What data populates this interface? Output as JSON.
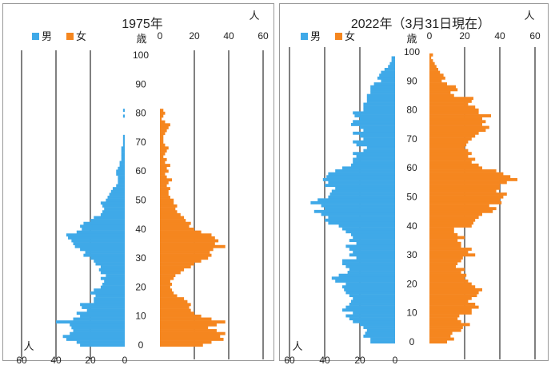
{
  "colors": {
    "male": "#3fa9e8",
    "female": "#f5861f",
    "gridline": "#000000"
  },
  "chart_data": [
    {
      "type": "bar",
      "orientation": "population-pyramid",
      "title": "1975年",
      "legend": [
        "男",
        "女"
      ],
      "unit_label": "人",
      "age_axis_label": "歳",
      "age_ticks": [
        "0",
        "10",
        "20",
        "30",
        "40",
        "50",
        "60",
        "70",
        "80",
        "90",
        "100"
      ],
      "x_ticks_male": [
        "60",
        "40",
        "20",
        "0"
      ],
      "x_ticks_female": [
        "0",
        "20",
        "40",
        "60"
      ],
      "xlim": [
        0,
        60
      ],
      "age_range": [
        0,
        100
      ],
      "series": [
        {
          "name": "男",
          "values": [
            26,
            28,
            34,
            36,
            32,
            30,
            31,
            32,
            40,
            30,
            26,
            28,
            22,
            25,
            26,
            18,
            18,
            17,
            20,
            18,
            14,
            13,
            12,
            14,
            11,
            14,
            15,
            14,
            17,
            18,
            20,
            24,
            23,
            26,
            29,
            30,
            31,
            33,
            34,
            28,
            25,
            26,
            24,
            20,
            18,
            14,
            13,
            12,
            13,
            14,
            11,
            10,
            9,
            8,
            7,
            5,
            4,
            4,
            4,
            5,
            5,
            4,
            3,
            3,
            2,
            2,
            2,
            2,
            2,
            1,
            1,
            1,
            1,
            0,
            0,
            0,
            0,
            0,
            0,
            1,
            0,
            1,
            0,
            0,
            0,
            0,
            0,
            0,
            0,
            0,
            0,
            0,
            0,
            0,
            0,
            0,
            0,
            0,
            0,
            0,
            0
          ]
        },
        {
          "name": "女",
          "values": [
            25,
            30,
            37,
            35,
            38,
            33,
            28,
            33,
            38,
            30,
            24,
            20,
            18,
            17,
            18,
            16,
            14,
            10,
            8,
            7,
            6,
            7,
            6,
            8,
            9,
            12,
            14,
            18,
            20,
            24,
            28,
            30,
            29,
            31,
            38,
            32,
            34,
            32,
            30,
            24,
            20,
            17,
            18,
            15,
            14,
            12,
            10,
            9,
            10,
            8,
            8,
            6,
            5,
            5,
            6,
            4,
            5,
            7,
            4,
            3,
            5,
            4,
            6,
            3,
            4,
            2,
            3,
            4,
            5,
            3,
            2,
            2,
            2,
            3,
            4,
            5,
            6,
            3,
            1,
            2,
            3,
            2,
            0,
            0,
            0,
            0,
            0,
            0,
            0,
            0,
            0,
            0,
            0,
            0,
            0,
            0,
            0,
            0,
            0,
            0,
            0
          ]
        }
      ]
    },
    {
      "type": "bar",
      "orientation": "population-pyramid",
      "title": "2022年（3月31日現在）",
      "legend": [
        "男",
        "女"
      ],
      "unit_label": "人",
      "age_axis_label": "歳",
      "age_ticks": [
        "0",
        "10",
        "20",
        "30",
        "40",
        "50",
        "60",
        "70",
        "80",
        "90",
        "100"
      ],
      "x_ticks_male": [
        "60",
        "40",
        "20",
        "0"
      ],
      "x_ticks_female": [
        "0",
        "20",
        "40",
        "60"
      ],
      "xlim": [
        0,
        60
      ],
      "age_range": [
        0,
        100
      ],
      "series": [
        {
          "name": "男",
          "values": [
            14,
            14,
            18,
            17,
            16,
            18,
            20,
            24,
            26,
            28,
            24,
            30,
            28,
            26,
            25,
            24,
            26,
            28,
            29,
            30,
            28,
            34,
            36,
            32,
            27,
            26,
            28,
            30,
            30,
            22,
            26,
            24,
            26,
            28,
            22,
            26,
            24,
            25,
            28,
            30,
            32,
            38,
            40,
            38,
            42,
            46,
            40,
            42,
            48,
            44,
            38,
            37,
            36,
            34,
            40,
            38,
            41,
            39,
            38,
            34,
            30,
            25,
            24,
            24,
            22,
            24,
            18,
            16,
            22,
            24,
            18,
            20,
            24,
            18,
            20,
            25,
            24,
            20,
            23,
            24,
            18,
            18,
            18,
            16,
            16,
            16,
            14,
            14,
            14,
            12,
            8,
            10,
            9,
            8,
            6,
            4,
            3,
            2,
            2,
            0,
            0
          ]
        },
        {
          "name": "女",
          "values": [
            10,
            14,
            12,
            13,
            18,
            19,
            23,
            18,
            16,
            17,
            24,
            24,
            28,
            26,
            22,
            24,
            27,
            28,
            30,
            26,
            24,
            22,
            20,
            21,
            18,
            20,
            15,
            16,
            18,
            19,
            26,
            22,
            24,
            18,
            18,
            16,
            20,
            16,
            14,
            14,
            24,
            25,
            26,
            28,
            30,
            36,
            38,
            34,
            41,
            40,
            42,
            44,
            38,
            40,
            40,
            44,
            50,
            46,
            42,
            38,
            30,
            28,
            24,
            26,
            22,
            24,
            22,
            20,
            21,
            22,
            24,
            26,
            28,
            32,
            34,
            30,
            32,
            30,
            35,
            28,
            28,
            26,
            22,
            24,
            25,
            14,
            12,
            16,
            15,
            10,
            7,
            9,
            8,
            6,
            5,
            4,
            3,
            2,
            1,
            2,
            0
          ]
        }
      ]
    }
  ]
}
